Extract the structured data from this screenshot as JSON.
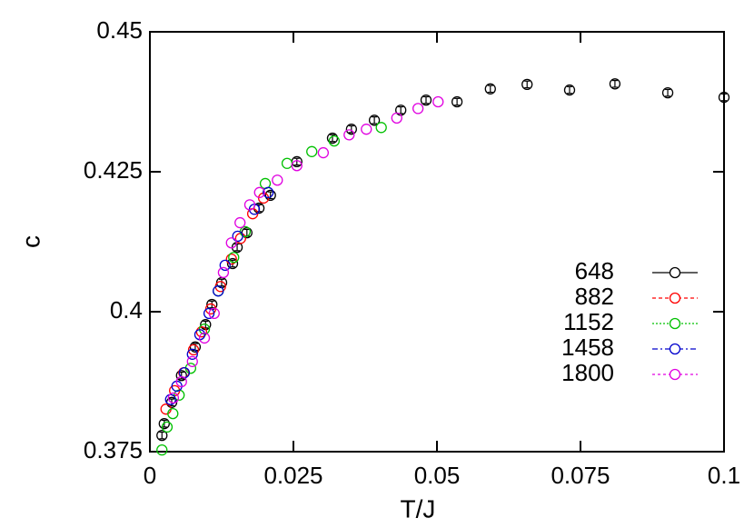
{
  "chart_data": {
    "type": "scatter",
    "xlabel": "T/J",
    "ylabel": "c",
    "xlim": [
      0,
      0.1
    ],
    "ylim": [
      0.375,
      0.45
    ],
    "xticks": [
      0,
      0.025,
      0.05,
      0.075,
      0.1
    ],
    "yticks": [
      0.375,
      0.4,
      0.425,
      0.45
    ],
    "legend": "right",
    "series": [
      {
        "name": "648",
        "color": "#000000",
        "x": [
          0.0021,
          0.0025,
          0.0038,
          0.0055,
          0.0079,
          0.0097,
          0.0108,
          0.0125,
          0.0144,
          0.0152,
          0.0169,
          0.019,
          0.021,
          0.0256,
          0.0318,
          0.0351,
          0.0391,
          0.0437,
          0.0481,
          0.0535,
          0.0593,
          0.0657,
          0.0731,
          0.081,
          0.0902,
          0.1
        ],
        "values": [
          0.3779,
          0.38,
          0.3838,
          0.3886,
          0.3937,
          0.3977,
          0.4013,
          0.4052,
          0.4086,
          0.4115,
          0.4141,
          0.4185,
          0.4208,
          0.4268,
          0.431,
          0.4326,
          0.4342,
          0.436,
          0.4378,
          0.4375,
          0.4398,
          0.4406,
          0.4396,
          0.4407,
          0.4391,
          0.4383
        ],
        "errors": [
          0.0006,
          0.0006,
          0.0006,
          0.0006,
          0.0006,
          0.0006,
          0.0006,
          0.0006,
          0.0006,
          0.0006,
          0.0006,
          0.0006,
          0.0006,
          0.0006,
          0.0006,
          0.0006,
          0.0006,
          0.0006,
          0.0006,
          0.0006,
          0.0006,
          0.0006,
          0.0006,
          0.0006,
          0.0006,
          0.0006
        ]
      },
      {
        "name": "882",
        "color": "#ff0000",
        "x": [
          0.0028,
          0.0043,
          0.0059,
          0.0076,
          0.009,
          0.0106,
          0.0123,
          0.0142,
          0.0158,
          0.0179,
          0.0198
        ],
        "values": [
          0.3826,
          0.3859,
          0.3891,
          0.3932,
          0.3964,
          0.4005,
          0.4045,
          0.4094,
          0.4131,
          0.4175,
          0.4203
        ]
      },
      {
        "name": "1152",
        "color": "#00c000",
        "x": [
          0.0021,
          0.003,
          0.004,
          0.0051,
          0.0071,
          0.0095,
          0.0119,
          0.0146,
          0.0166,
          0.0201,
          0.0239,
          0.0282,
          0.0321,
          0.0403
        ],
        "values": [
          0.3753,
          0.3794,
          0.3818,
          0.3851,
          0.3899,
          0.3969,
          0.4037,
          0.4097,
          0.4143,
          0.4229,
          0.4265,
          0.4286,
          0.4305,
          0.4329
        ]
      },
      {
        "name": "1458",
        "color": "#0000cc",
        "x": [
          0.0036,
          0.0047,
          0.006,
          0.0074,
          0.0087,
          0.0103,
          0.0119,
          0.0131,
          0.0153,
          0.0182,
          0.0206
        ],
        "values": [
          0.3843,
          0.3867,
          0.3891,
          0.3924,
          0.3959,
          0.3997,
          0.4037,
          0.4083,
          0.4135,
          0.4183,
          0.4213
        ]
      },
      {
        "name": "1800",
        "color": "#e000e0",
        "x": [
          0.0041,
          0.0055,
          0.0074,
          0.0095,
          0.0112,
          0.0128,
          0.0142,
          0.0157,
          0.0174,
          0.0191,
          0.0222,
          0.0256,
          0.0302,
          0.0347,
          0.0377,
          0.043,
          0.0467,
          0.0502
        ],
        "values": [
          0.3846,
          0.3875,
          0.3911,
          0.3953,
          0.3997,
          0.407,
          0.4123,
          0.4159,
          0.4191,
          0.4213,
          0.4235,
          0.4261,
          0.4284,
          0.4316,
          0.4326,
          0.4346,
          0.4363,
          0.4375
        ]
      }
    ]
  }
}
